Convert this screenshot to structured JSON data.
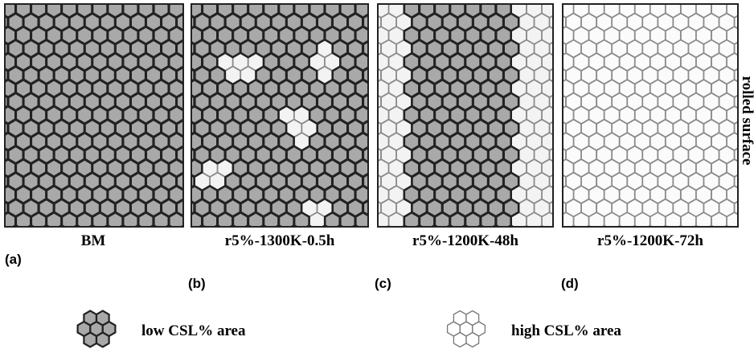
{
  "panels": [
    {
      "letter": "(a)",
      "caption": "BM"
    },
    {
      "letter": "(b)",
      "caption": "r5%-1300K-0.5h"
    },
    {
      "letter": "(c)",
      "caption": "r5%-1200K-48h"
    },
    {
      "letter": "(d)",
      "caption": "r5%-1200K-72h"
    }
  ],
  "side_label": "rolled surface",
  "legend": [
    {
      "label": "low CSL% area"
    },
    {
      "label": "high CSL% area"
    }
  ]
}
